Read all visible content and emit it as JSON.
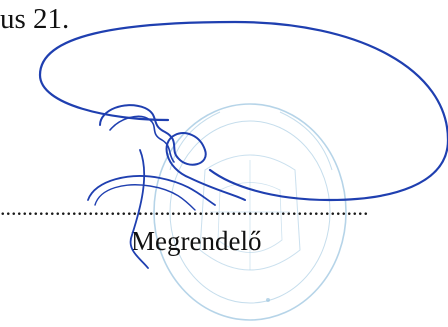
{
  "document": {
    "date_fragment": "us 21.",
    "dotted_line": "...................................................................",
    "signer_role": "Megrendelő"
  },
  "signature": {
    "ink_color": "#1f3fb0",
    "stamp_color": "#9ec6e0"
  }
}
